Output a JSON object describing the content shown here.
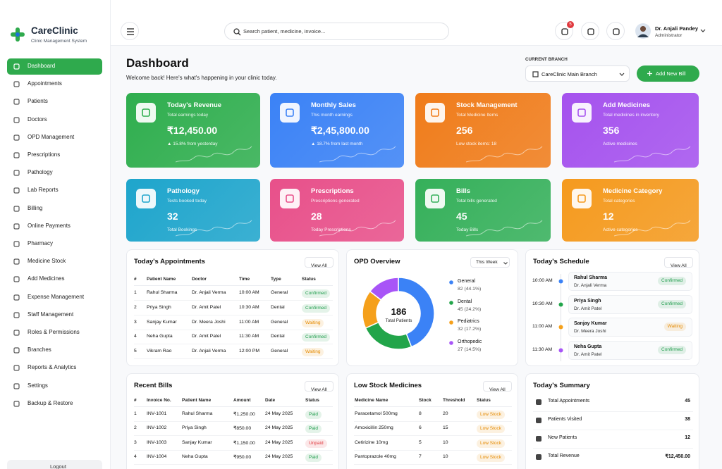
{
  "sidebar": {
    "brand": "CareClinic",
    "tagline": "Clinic Management System",
    "menu": [
      "Dashboard",
      "Appointments",
      "Patients",
      "Doctors",
      "OPD Management",
      "Prescriptions",
      "Pathology",
      "Lab Reports",
      "Billing",
      "Online Payments",
      "Pharmacy",
      "Medicine Stock",
      "Add Medicines",
      "Expense Management",
      "Staff Management",
      "Roles & Permissions",
      "Branches",
      "Reports & Analytics",
      "Settings",
      "Backup & Restore"
    ],
    "logout": "Logout"
  },
  "topbar": {
    "search_placeholder": "Search patient, medicine, invoice...",
    "notifications": 5,
    "user_name": "Dr. Anjali Pandey",
    "user_role": "Administrator"
  },
  "header": {
    "title": "Dashboard",
    "subtitle": "Welcome back! Here's what's happening in your clinic today.",
    "branch_label": "CURRENT BRANCH",
    "branch": "CareClinic Main Branch",
    "button": "Add New Bill"
  },
  "stats": [
    {
      "title": "Today's Revenue",
      "subtitle": "Total earnings today",
      "value": "₹12,450.00",
      "note": "▲ 15.8% from yesterday",
      "color": "#2fae4e"
    },
    {
      "title": "Monthly Sales",
      "subtitle": "This month earnings",
      "value": "₹2,45,800.00",
      "note": "▲ 18.7% from last month",
      "color": "#3b82f6"
    },
    {
      "title": "Stock Management",
      "subtitle": "Total Medicine Items",
      "value": 256,
      "note": "Low stock items: 18",
      "color": "#f07c1a"
    },
    {
      "title": "Add Medicines",
      "subtitle": "Total medicines in inventory",
      "value": 356,
      "note": "Active medicines",
      "color": "#a552ee"
    },
    {
      "title": "Pathology",
      "subtitle": "Tests booked today",
      "value": 32,
      "note": "Total Bookings",
      "color": "#1ea5cc"
    },
    {
      "title": "Prescriptions",
      "subtitle": "Prescriptions generated",
      "value": 28,
      "note": "Today Prescriptions",
      "color": "#e8508a"
    },
    {
      "title": "Bills",
      "subtitle": "Total bills generated",
      "value": 45,
      "note": "Today Bills",
      "color": "#35b05a"
    },
    {
      "title": "Medicine Category",
      "subtitle": "Total categories",
      "value": 12,
      "note": "Active categories",
      "color": "#f59a1e"
    }
  ],
  "appointments": {
    "title": "Today's Appointments",
    "action": "View All",
    "columns": [
      "#",
      "Patient Name",
      "Doctor",
      "Time",
      "Type",
      "Status"
    ],
    "rows": [
      [
        1,
        "Rahul Sharma",
        "Dr. Anjali Verma",
        "10:00 AM",
        "General",
        {
          "text": "Confirmed",
          "color": "#1f9d4c"
        }
      ],
      [
        2,
        "Priya Singh",
        "Dr. Amit Patel",
        "10:30 AM",
        "Dental",
        {
          "text": "Confirmed",
          "color": "#1f9d4c"
        }
      ],
      [
        3,
        "Sanjay Kumar",
        "Dr. Meera Joshi",
        "11:00 AM",
        "General",
        {
          "text": "Waiting",
          "color": "#e58a00"
        }
      ],
      [
        4,
        "Neha Gupta",
        "Dr. Amit Patel",
        "11:30 AM",
        "Dental",
        {
          "text": "Confirmed",
          "color": "#1f9d4c"
        }
      ],
      [
        5,
        "Vikram Rao",
        "Dr. Anjali Verma",
        "12:00 PM",
        "General",
        {
          "text": "Waiting",
          "color": "#e58a00"
        }
      ]
    ]
  },
  "opd": {
    "title": "OPD Overview",
    "period": "This Week",
    "total": 186,
    "total_label": "Total Patients",
    "segments": [
      {
        "name": "General",
        "count": 82,
        "share": "(44.1%)",
        "color": "#3b82f6"
      },
      {
        "name": "Dental",
        "count": 45,
        "share": "(24.2%)",
        "color": "#22a54a"
      },
      {
        "name": "Pediatrics",
        "count": 32,
        "share": "(17.2%)",
        "color": "#f5a01b"
      },
      {
        "name": "Orthopedic",
        "count": 27,
        "share": "(14.5%)",
        "color": "#a855f7"
      }
    ]
  },
  "schedule": {
    "title": "Today's Schedule",
    "action": "View All",
    "items": [
      {
        "time": "10:00 AM",
        "patient": "Rahul Sharma",
        "doctor": "Dr. Anjali Verma",
        "status": {
          "text": "Confirmed",
          "color": "#1f9d4c"
        },
        "dot": "#3b82f6"
      },
      {
        "time": "10:30 AM",
        "patient": "Priya Singh",
        "doctor": "Dr. Amit Patel",
        "status": {
          "text": "Confirmed",
          "color": "#1f9d4c"
        },
        "dot": "#22a54a"
      },
      {
        "time": "11:00 AM",
        "patient": "Sanjay Kumar",
        "doctor": "Dr. Meera Joshi",
        "status": {
          "text": "Waiting",
          "color": "#e58a00"
        },
        "dot": "#f5a01b"
      },
      {
        "time": "11:30 AM",
        "patient": "Neha Gupta",
        "doctor": "Dr. Amit Patel",
        "status": {
          "text": "Confirmed",
          "color": "#1f9d4c"
        },
        "dot": "#a855f7"
      }
    ]
  },
  "bills": {
    "title": "Recent Bills",
    "action": "View All",
    "columns": [
      "#",
      "Invoice No.",
      "Patient Name",
      "Amount",
      "Date",
      "Status"
    ],
    "rows": [
      [
        1,
        "INV-1001",
        "Rahul Sharma",
        "₹1,250.00",
        "24 May 2025",
        {
          "text": "Paid",
          "color": "#1f9d4c"
        }
      ],
      [
        2,
        "INV-1002",
        "Priya Singh",
        "₹850.00",
        "24 May 2025",
        {
          "text": "Paid",
          "color": "#1f9d4c"
        }
      ],
      [
        3,
        "INV-1003",
        "Sanjay Kumar",
        "₹1,150.00",
        "24 May 2025",
        {
          "text": "Unpaid",
          "color": "#e0393e"
        }
      ],
      [
        4,
        "INV-1004",
        "Neha Gupta",
        "₹950.00",
        "24 May 2025",
        {
          "text": "Paid",
          "color": "#1f9d4c"
        }
      ]
    ]
  },
  "low_stock": {
    "title": "Low Stock Medicines",
    "action": "View All",
    "columns": [
      "Medicine Name",
      "Stock",
      "Threshold",
      "Status"
    ],
    "rows": [
      [
        "Paracetamol 500mg",
        8,
        20,
        {
          "text": "Low Stock",
          "color": "#e58a00"
        }
      ],
      [
        "Amoxicillin 250mg",
        6,
        15,
        {
          "text": "Low Stock",
          "color": "#e58a00"
        }
      ],
      [
        "Cetirizine 10mg",
        5,
        10,
        {
          "text": "Low Stock",
          "color": "#e58a00"
        }
      ],
      [
        "Pantoprazole 40mg",
        7,
        10,
        {
          "text": "Low Stock",
          "color": "#e58a00"
        }
      ]
    ]
  },
  "summary": {
    "title": "Today's Summary",
    "items": [
      {
        "label": "Total Appointments",
        "value": 45
      },
      {
        "label": "Patients Visited",
        "value": 38
      },
      {
        "label": "New Patients",
        "value": 12
      },
      {
        "label": "Total Revenue",
        "value": "₹12,450.00"
      }
    ]
  }
}
